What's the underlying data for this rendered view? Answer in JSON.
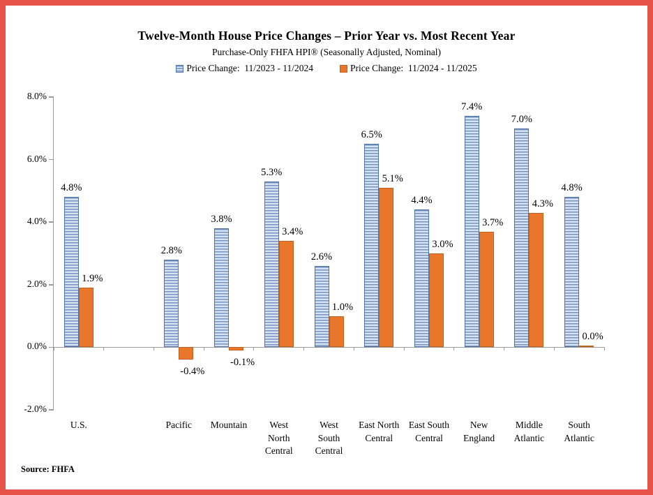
{
  "frame": {
    "border_color": "#e8534a"
  },
  "header": {
    "title": "Twelve-Month House Price Changes – Prior Year vs. Most Recent Year",
    "subtitle": "Purchase-Only FHFA HPI® (Seasonally Adjusted, Nominal)"
  },
  "legend": [
    {
      "label": "Price Change:  11/2023 - 11/2024",
      "swatch_color": "#95b3d7",
      "swatch_style": "horizontal-stripes"
    },
    {
      "label": "Price Change:  11/2024 - 11/2025",
      "swatch_color": "#e8772b",
      "swatch_style": "solid"
    }
  ],
  "source": "Source: FHFA",
  "chart_data": {
    "type": "bar",
    "title": "Twelve-Month House Price Changes – Prior Year vs. Most Recent Year",
    "subtitle": "Purchase-Only FHFA HPI® (Seasonally Adjusted, Nominal)",
    "categories": [
      "U.S.",
      "Pacific",
      "Mountain",
      "West\nNorth\nCentral",
      "West\nSouth\nCentral",
      "East North\nCentral",
      "East South\nCentral",
      "New\nEngland",
      "Middle\nAtlantic",
      "South\nAtlantic"
    ],
    "series": [
      {
        "name": "Price Change:  11/2023 - 11/2024",
        "color": "#95b3d7",
        "pattern": "horizontal-stripes",
        "values": [
          4.8,
          2.8,
          3.8,
          5.3,
          2.6,
          6.5,
          4.4,
          7.4,
          7.0,
          4.8
        ],
        "labels": [
          "4.8%",
          "2.8%",
          "3.8%",
          "5.3%",
          "2.6%",
          "6.5%",
          "4.4%",
          "7.4%",
          "7.0%",
          "4.8%"
        ]
      },
      {
        "name": "Price Change:  11/2024 - 11/2025",
        "color": "#e8772b",
        "pattern": "solid",
        "values": [
          1.9,
          -0.4,
          -0.1,
          3.4,
          1.0,
          5.1,
          3.0,
          3.7,
          4.3,
          0.0
        ],
        "labels": [
          "1.9%",
          "-0.4%",
          "-0.1%",
          "3.4%",
          "1.0%",
          "5.1%",
          "3.0%",
          "3.7%",
          "4.3%",
          "0.0%"
        ]
      }
    ],
    "ylim": [
      -2,
      8
    ],
    "ytick_values": [
      8,
      6,
      4,
      2,
      0,
      -2
    ],
    "ytick_labels": [
      "8.0%",
      "6.0%",
      "4.0%",
      "2.0%",
      "0.0%",
      "-2.0%"
    ],
    "grid": false,
    "legend_position": "top",
    "layout": {
      "slot_count": 11,
      "slot_indices": [
        0,
        2,
        3,
        4,
        5,
        6,
        7,
        8,
        9,
        10
      ]
    },
    "source": "Source: FHFA"
  }
}
